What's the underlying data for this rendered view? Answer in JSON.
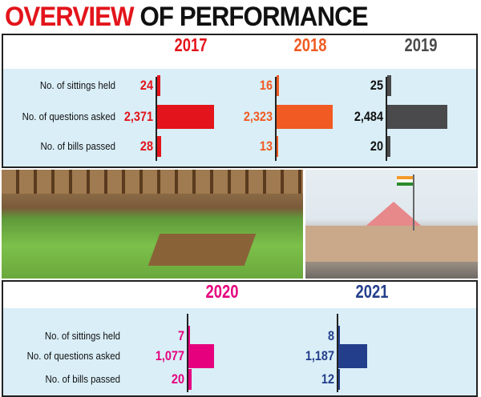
{
  "title": {
    "part1": "OVERVIEW",
    "part2": "OF PERFORMANCE"
  },
  "chart_data": {
    "type": "bar",
    "orientation": "horizontal",
    "categories": [
      "No. of sittings held",
      "No. of questions asked",
      "No. of bills passed"
    ],
    "series": [
      {
        "name": "2017",
        "values": [
          24,
          2371,
          28
        ],
        "labels": [
          "24",
          "2,371",
          "28"
        ],
        "color": "#e3141b"
      },
      {
        "name": "2018",
        "values": [
          16,
          2323,
          13
        ],
        "labels": [
          "16",
          "2,323",
          "13"
        ],
        "color": "#f15a22"
      },
      {
        "name": "2019",
        "values": [
          25,
          2484,
          20
        ],
        "labels": [
          "25",
          "2,484",
          "20"
        ],
        "color": "#4a4a4c"
      },
      {
        "name": "2020",
        "values": [
          7,
          1077,
          20
        ],
        "labels": [
          "7",
          "1,077",
          "20"
        ],
        "color": "#e6007e"
      },
      {
        "name": "2021",
        "values": [
          8,
          1187,
          12
        ],
        "labels": [
          "8",
          "1,187",
          "12"
        ],
        "color": "#233e8b"
      }
    ]
  },
  "colors": {
    "panel_bg": "#d9eef7",
    "title_red": "#e3141b"
  },
  "photos": [
    "assembly-hall-photo",
    "assembly-building-photo"
  ]
}
